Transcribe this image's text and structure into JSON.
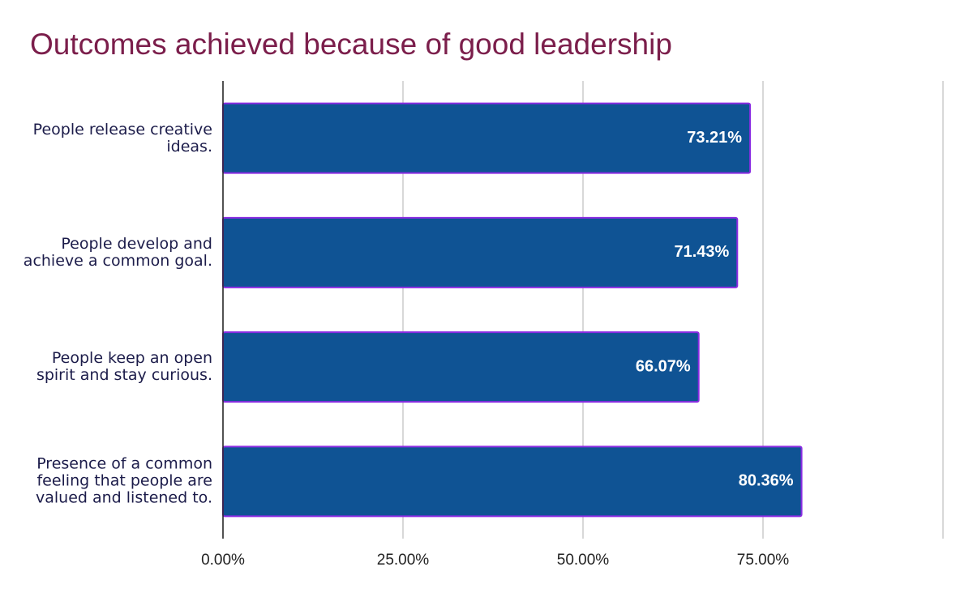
{
  "chart_data": {
    "type": "bar",
    "orientation": "horizontal",
    "title": "Outcomes achieved because of good leadership",
    "categories": [
      "People release creative ideas.",
      "People develop and achieve a common goal.",
      "People keep an open spirit and stay curious.",
      "Presence of a common feeling that people are valued and listened to."
    ],
    "values": [
      73.21,
      71.43,
      66.07,
      80.36
    ],
    "value_labels": [
      "73.21%",
      "71.43%",
      "66.07%",
      "80.36%"
    ],
    "color": "#0f5394",
    "xlim": [
      0,
      100
    ],
    "xticks": [
      {
        "value": 0,
        "label": "0.00%"
      },
      {
        "value": 25,
        "label": "25.00%"
      },
      {
        "value": 50,
        "label": "50.00%"
      },
      {
        "value": 75,
        "label": "75.00%"
      }
    ],
    "grid": true
  }
}
